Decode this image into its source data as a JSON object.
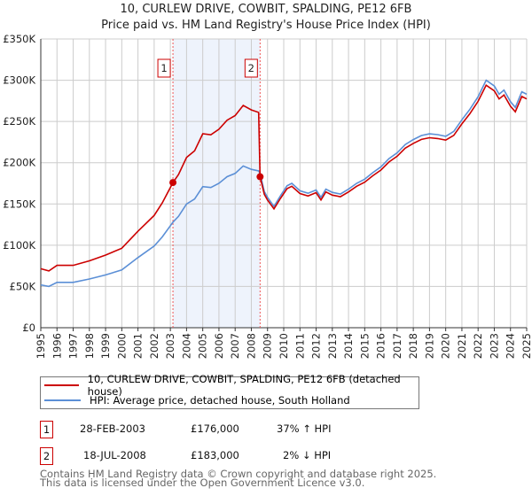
{
  "chart_data": {
    "type": "line",
    "title": "10, CURLEW DRIVE, COWBIT, SPALDING, PE12 6FB",
    "subtitle": "Price paid vs. HM Land Registry's House Price Index (HPI)",
    "xlim": [
      1995,
      2025
    ],
    "ylim": [
      0,
      350000
    ],
    "yticks": [
      {
        "v": 0,
        "label": "£0"
      },
      {
        "v": 50000,
        "label": "£50K"
      },
      {
        "v": 100000,
        "label": "£100K"
      },
      {
        "v": 150000,
        "label": "£150K"
      },
      {
        "v": 200000,
        "label": "£200K"
      },
      {
        "v": 250000,
        "label": "£250K"
      },
      {
        "v": 300000,
        "label": "£300K"
      },
      {
        "v": 350000,
        "label": "£350K"
      }
    ],
    "xticks": [
      "1995",
      "1996",
      "1997",
      "1998",
      "1999",
      "2000",
      "2001",
      "2002",
      "2003",
      "2004",
      "2005",
      "2006",
      "2007",
      "2008",
      "2009",
      "2010",
      "2011",
      "2012",
      "2013",
      "2014",
      "2015",
      "2016",
      "2017",
      "2018",
      "2019",
      "2020",
      "2021",
      "2022",
      "2023",
      "2024",
      "2025"
    ],
    "grid": true,
    "x": [
      1995,
      1995.5,
      1996,
      1997,
      1998,
      1999,
      2000,
      2001,
      2002,
      2002.5,
      2003.16,
      2003.5,
      2004,
      2004.5,
      2005,
      2005.5,
      2006,
      2006.5,
      2007,
      2007.5,
      2008,
      2008.45,
      2008.54,
      2008.8,
      2009,
      2009.4,
      2009.8,
      2010.2,
      2010.5,
      2011,
      2011.5,
      2012,
      2012.3,
      2012.6,
      2013,
      2013.5,
      2014,
      2014.5,
      2015,
      2015.5,
      2016,
      2016.5,
      2017,
      2017.5,
      2018,
      2018.5,
      2019,
      2019.5,
      2020,
      2020.5,
      2021,
      2021.5,
      2022,
      2022.5,
      2023,
      2023.3,
      2023.6,
      2024,
      2024.3,
      2024.7,
      2025
    ],
    "series": [
      {
        "name": "10, CURLEW DRIVE, COWBIT, SPALDING, PE12 6FB (detached house)",
        "color": "#cc0000",
        "values": [
          71500,
          68800,
          75600,
          75600,
          81100,
          88000,
          96300,
          116900,
          136100,
          151300,
          176000,
          185600,
          206300,
          214500,
          235100,
          233800,
          240600,
          251600,
          257100,
          269500,
          264000,
          261000,
          183000,
          161700,
          154800,
          144100,
          156800,
          168600,
          171500,
          162700,
          159700,
          163700,
          154800,
          164600,
          160700,
          158800,
          164600,
          171500,
          176400,
          184200,
          191100,
          200900,
          207800,
          217600,
          223400,
          228300,
          230300,
          229300,
          227400,
          233200,
          247000,
          259700,
          274400,
          294000,
          287100,
          277300,
          282200,
          268500,
          261700,
          280300,
          277300
        ]
      },
      {
        "name": "HPI: Average price, detached house, South Holland",
        "color": "#5b8fd6",
        "values": [
          52000,
          50000,
          55000,
          55000,
          59000,
          64000,
          70000,
          85000,
          99000,
          110000,
          128000,
          135000,
          150000,
          156000,
          171000,
          170000,
          175000,
          183000,
          187000,
          196000,
          192000,
          190000,
          187000,
          165000,
          158000,
          147000,
          160000,
          172000,
          175000,
          166000,
          163000,
          167000,
          158000,
          168000,
          164000,
          162000,
          168000,
          175000,
          180000,
          188000,
          195000,
          205000,
          212000,
          222000,
          228000,
          233000,
          235000,
          234000,
          232000,
          238000,
          252000,
          265000,
          280000,
          300000,
          293000,
          283000,
          288000,
          274000,
          267000,
          286000,
          283000
        ]
      }
    ],
    "sales": [
      {
        "id": "1",
        "x": 2003.16,
        "price": 176000,
        "date": "28-FEB-2003",
        "price_label": "£176,000",
        "hpi_label": "37% ↑ HPI"
      },
      {
        "id": "2",
        "x": 2008.54,
        "price": 183000,
        "date": "18-JUL-2008",
        "price_label": "£183,000",
        "hpi_label": "2% ↓ HPI"
      }
    ],
    "highlight": [
      2003.16,
      2008.54
    ],
    "legend_position": "below"
  },
  "footer": {
    "line1": "Contains HM Land Registry data © Crown copyright and database right 2025.",
    "line2": "This data is licensed under the Open Government Licence v3.0."
  }
}
